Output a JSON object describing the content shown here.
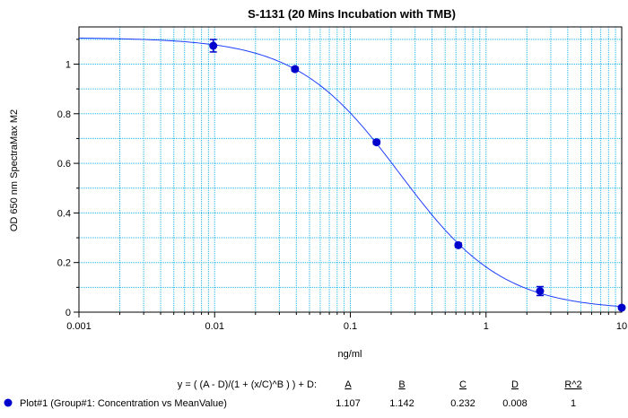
{
  "chart_data": {
    "type": "scatter",
    "title": "S-1131 (20 Mins Incubation with TMB)",
    "xlabel": "ng/ml",
    "ylabel": "OD 650 nm SpectraMax M2",
    "x_scale": "log",
    "xlim": [
      0.001,
      10
    ],
    "ylim": [
      0,
      1.15
    ],
    "grid": true,
    "x_ticks": [
      "0.001",
      "0.01",
      "0.1",
      "1",
      "10"
    ],
    "y_ticks": [
      "0",
      "0.2",
      "0.4",
      "0.6",
      "0.8",
      "1"
    ],
    "series": [
      {
        "name": "Plot#1 (Group#1: Concentration vs MeanValue)",
        "x": [
          0.00977,
          0.0391,
          0.156,
          0.625,
          2.5,
          10
        ],
        "y": [
          1.074,
          0.98,
          0.685,
          0.27,
          0.085,
          0.018
        ],
        "error": [
          0.025,
          0.008,
          0.008,
          0.008,
          0.018,
          0.006
        ]
      }
    ],
    "fit": {
      "equation": "y = ( (A - D)/(1 + (x/C)^B ) ) + D:",
      "A": 1.107,
      "B": 1.142,
      "C": 0.232,
      "D": 0.008,
      "R2": 1
    },
    "legend": {
      "headers": [
        "A",
        "B",
        "C",
        "D",
        "R^2"
      ],
      "values": [
        "1.107",
        "1.142",
        "0.232",
        "0.008",
        "1"
      ]
    },
    "colors": {
      "marker": "#0000cc",
      "fit_line": "#1f3fff",
      "grid": "#22b8e8"
    }
  }
}
